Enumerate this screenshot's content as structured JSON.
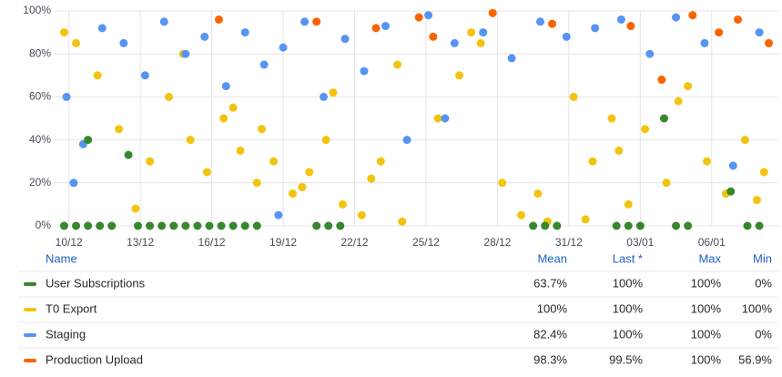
{
  "chart_data": {
    "type": "scatter",
    "xlim": [
      9.4,
      39.8
    ],
    "ylim": [
      0,
      100
    ],
    "xticks": [
      {
        "value": 10,
        "label": "10/12"
      },
      {
        "value": 13,
        "label": "13/12"
      },
      {
        "value": 16,
        "label": "16/12"
      },
      {
        "value": 19,
        "label": "19/12"
      },
      {
        "value": 22,
        "label": "22/12"
      },
      {
        "value": 25,
        "label": "25/12"
      },
      {
        "value": 28,
        "label": "28/12"
      },
      {
        "value": 31,
        "label": "31/12"
      },
      {
        "value": 34,
        "label": "03/01"
      },
      {
        "value": 37,
        "label": "06/01"
      }
    ],
    "yticks": [
      {
        "value": 0,
        "label": "0%"
      },
      {
        "value": 20,
        "label": "20%"
      },
      {
        "value": 40,
        "label": "40%"
      },
      {
        "value": 60,
        "label": "60%"
      },
      {
        "value": 80,
        "label": "80%"
      },
      {
        "value": 100,
        "label": "100%"
      }
    ],
    "grid": true,
    "series": [
      {
        "name": "T0 Export",
        "color": "#f2c40f",
        "x": [
          9.8,
          10.3,
          11.2,
          12.1,
          13.4,
          14.2,
          15.1,
          15.8,
          16.5,
          17.2,
          17.9,
          18.6,
          19.4,
          20.1,
          20.8,
          21.5,
          22.3,
          23.1,
          24.0,
          25.5,
          26.4,
          27.3,
          28.2,
          29.0,
          30.1,
          31.2,
          32.0,
          32.8,
          33.5,
          34.2,
          35.1,
          36.0,
          36.8,
          37.6,
          38.4,
          39.2,
          14.8,
          16.9,
          18.1,
          19.8,
          21.1,
          23.8,
          26.9,
          29.7,
          33.1,
          35.6,
          38.9,
          12.8,
          22.7,
          31.7
        ],
        "values": [
          90,
          85,
          70,
          45,
          30,
          60,
          40,
          25,
          50,
          35,
          20,
          30,
          15,
          25,
          40,
          10,
          5,
          30,
          2,
          50,
          70,
          85,
          20,
          5,
          2,
          60,
          30,
          50,
          10,
          45,
          20,
          65,
          30,
          15,
          40,
          25,
          80,
          55,
          45,
          18,
          62,
          75,
          90,
          15,
          35,
          58,
          12,
          8,
          22,
          3
        ]
      },
      {
        "name": "Staging",
        "color": "#5794f2",
        "x": [
          9.9,
          10.6,
          11.4,
          12.3,
          13.2,
          14.0,
          14.9,
          15.7,
          16.6,
          17.4,
          18.2,
          19.0,
          19.9,
          20.7,
          21.6,
          22.4,
          23.3,
          24.2,
          25.1,
          26.2,
          27.4,
          28.6,
          29.8,
          30.9,
          32.1,
          33.2,
          34.4,
          35.5,
          36.7,
          37.9,
          39.0,
          10.2,
          18.8,
          25.8
        ],
        "values": [
          60,
          38,
          92,
          85,
          70,
          95,
          80,
          88,
          65,
          90,
          75,
          83,
          95,
          60,
          87,
          72,
          93,
          40,
          98,
          85,
          90,
          78,
          95,
          88,
          92,
          96,
          80,
          97,
          85,
          28,
          90,
          20,
          5,
          50
        ]
      },
      {
        "name": "Production Upload",
        "color": "#fa6400",
        "x": [
          16.3,
          20.4,
          22.9,
          24.7,
          25.3,
          27.8,
          30.3,
          33.6,
          34.9,
          36.2,
          37.3,
          38.1,
          39.4
        ],
        "values": [
          96,
          95,
          92,
          97,
          88,
          99,
          94,
          93,
          68,
          98,
          90,
          96,
          85
        ]
      },
      {
        "name": "User Subscriptions",
        "color": "#37872d",
        "x": [
          9.8,
          10.3,
          10.8,
          11.3,
          11.8,
          12.9,
          13.4,
          13.9,
          14.4,
          14.9,
          15.4,
          15.9,
          16.4,
          16.9,
          17.4,
          17.9,
          20.4,
          20.9,
          21.4,
          29.5,
          30.0,
          30.5,
          33.0,
          33.5,
          34.0,
          35.5,
          36.0,
          38.5,
          39.0,
          10.8,
          12.5,
          35.0,
          37.8
        ],
        "values": [
          0,
          0,
          0,
          0,
          0,
          0,
          0,
          0,
          0,
          0,
          0,
          0,
          0,
          0,
          0,
          0,
          0,
          0,
          0,
          0,
          0,
          0,
          0,
          0,
          0,
          0,
          0,
          0,
          0,
          40,
          33,
          50,
          16
        ]
      }
    ]
  },
  "legend_table": {
    "columns": [
      "Name",
      "Mean",
      "Last *",
      "Max",
      "Min"
    ],
    "rows": [
      [
        "63.7%",
        "100%",
        "100%",
        "0%"
      ],
      [
        "100%",
        "100%",
        "100%",
        "100%"
      ],
      [
        "82.4%",
        "100%",
        "100%",
        "0%"
      ],
      [
        "98.3%",
        "99.5%",
        "100%",
        "56.9%"
      ]
    ],
    "order": [
      3,
      0,
      1,
      2
    ]
  }
}
